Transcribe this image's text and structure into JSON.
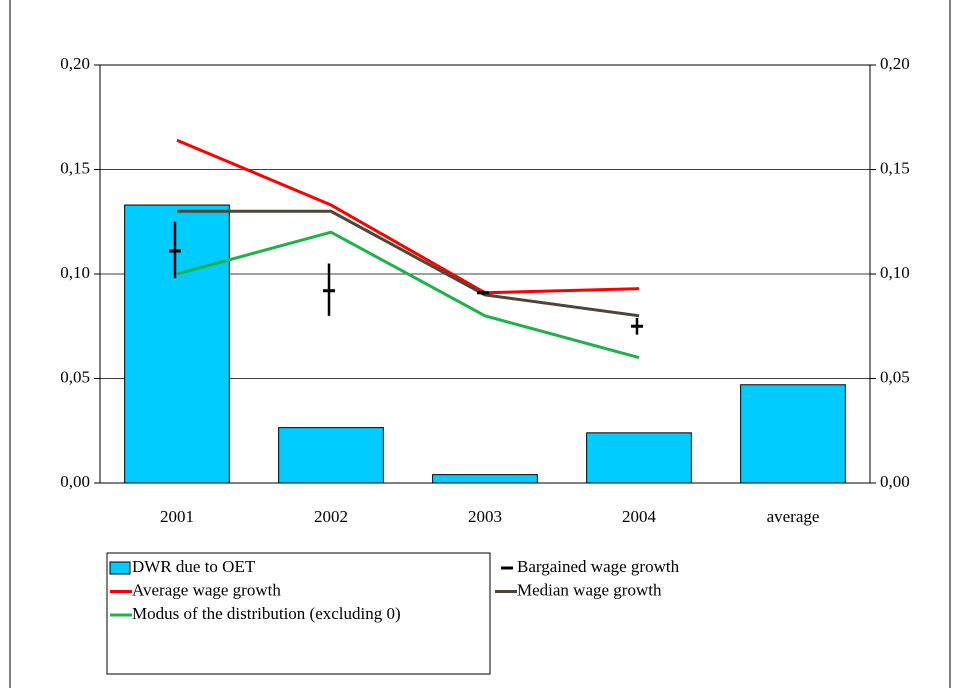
{
  "chart_data": {
    "type": "bar-line",
    "categories": [
      "2001",
      "2002",
      "2003",
      "2004",
      "average"
    ],
    "series": [
      {
        "name": "DWR due to OET",
        "type": "bar",
        "color": "#00ccff",
        "values": [
          0.133,
          0.0265,
          0.004,
          0.024,
          0.047
        ]
      },
      {
        "name": "Bargained wage growth",
        "type": "hilo",
        "color": "#000000",
        "values": [
          0.111,
          0.092,
          0.091,
          0.075,
          null
        ],
        "low": [
          0.098,
          0.08,
          0.09,
          0.071,
          null
        ],
        "high": [
          0.125,
          0.105,
          0.092,
          0.079,
          null
        ]
      },
      {
        "name": "Average wage growth",
        "type": "line",
        "color": "#ff0000",
        "values": [
          0.164,
          0.133,
          0.091,
          0.093,
          null
        ]
      },
      {
        "name": "Median wage growth",
        "type": "line",
        "color": "#4d4535",
        "values": [
          0.13,
          0.13,
          0.09,
          0.08,
          null
        ]
      },
      {
        "name": "Modus of the distribution (excluding 0)",
        "type": "line",
        "color": "#1db34a",
        "values": [
          0.1,
          0.12,
          0.08,
          0.06,
          null
        ]
      }
    ],
    "ylim": [
      0,
      0.2
    ],
    "yticks": [
      {
        "value": 0,
        "label": "0,00"
      },
      {
        "value": 0.05,
        "label": "0,05"
      },
      {
        "value": 0.1,
        "label": "0,10"
      },
      {
        "value": 0.15,
        "label": "0,15"
      },
      {
        "value": 0.2,
        "label": "0,20"
      }
    ],
    "y2lim": [
      0,
      0.2
    ],
    "y2ticks": [
      {
        "value": 0,
        "label": "0,00"
      },
      {
        "value": 0.05,
        "label": "0,05"
      },
      {
        "value": 0.1,
        "label": "0,10"
      },
      {
        "value": 0.15,
        "label": "0,15"
      },
      {
        "value": 0.2,
        "label": "0,20"
      }
    ],
    "grid": true,
    "legend": "bottom"
  }
}
